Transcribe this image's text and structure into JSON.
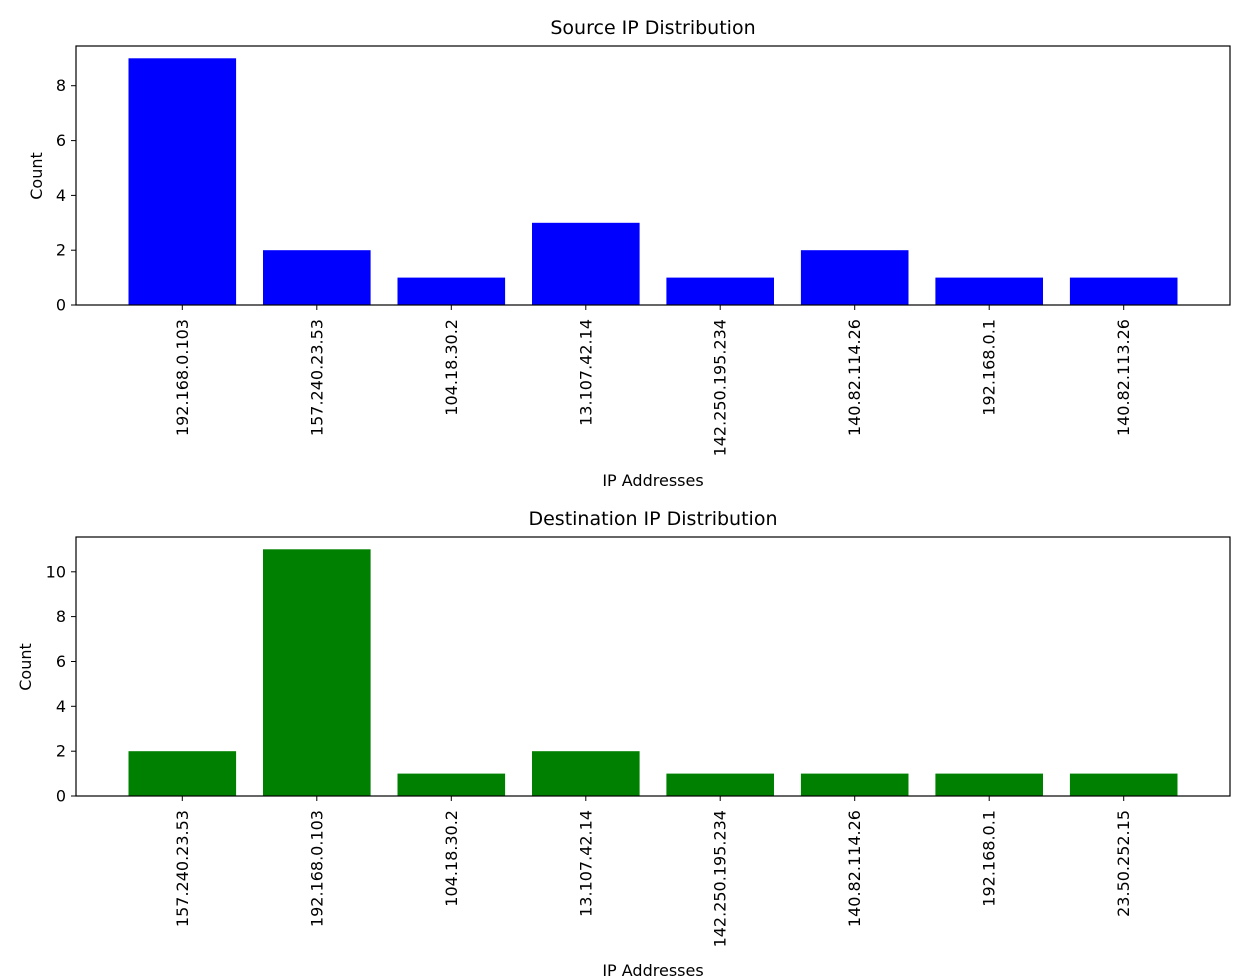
{
  "chart_data": [
    {
      "type": "bar",
      "title": "Source IP Distribution",
      "xlabel": "IP Addresses",
      "ylabel": "Count",
      "categories": [
        "192.168.0.103",
        "157.240.23.53",
        "104.18.30.2",
        "13.107.42.14",
        "142.250.195.234",
        "140.82.114.26",
        "192.168.0.1",
        "140.82.113.26"
      ],
      "values": [
        9,
        2,
        1,
        3,
        1,
        2,
        1,
        1
      ],
      "yticks": [
        0,
        2,
        4,
        6,
        8
      ],
      "ylim": [
        0,
        9.45
      ],
      "bar_color": "#0000ff",
      "grid": false
    },
    {
      "type": "bar",
      "title": "Destination IP Distribution",
      "xlabel": "IP Addresses",
      "ylabel": "Count",
      "categories": [
        "157.240.23.53",
        "192.168.0.103",
        "104.18.30.2",
        "13.107.42.14",
        "142.250.195.234",
        "140.82.114.26",
        "192.168.0.1",
        "23.50.252.15"
      ],
      "values": [
        2,
        11,
        1,
        2,
        1,
        1,
        1,
        1
      ],
      "yticks": [
        0,
        2,
        4,
        6,
        8,
        10
      ],
      "ylim": [
        0,
        11.55
      ],
      "bar_color": "#008000",
      "grid": false
    }
  ]
}
